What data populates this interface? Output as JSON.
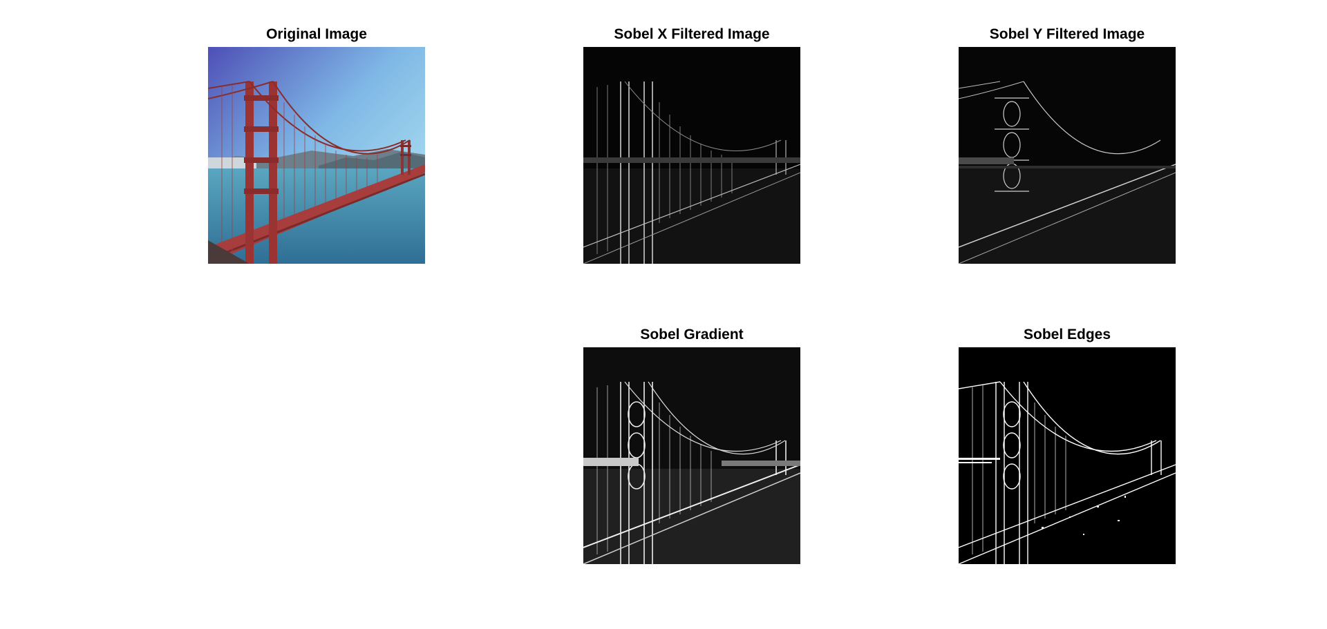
{
  "figure": {
    "panels": {
      "original": {
        "title": "Original Image"
      },
      "sobel_x": {
        "title": "Sobel X Filtered Image"
      },
      "sobel_y": {
        "title": "Sobel Y Filtered Image"
      },
      "gradient": {
        "title": "Sobel Gradient"
      },
      "edges": {
        "title": "Sobel Edges"
      }
    }
  },
  "colors": {
    "background": "#ffffff",
    "bridge_red": "#b04545",
    "sky_top": "#5a63c7",
    "sky_bottom": "#a8e3f0",
    "water": "#3f8fb0",
    "edge_dark": "#000000",
    "edge_light": "#ffffff"
  }
}
